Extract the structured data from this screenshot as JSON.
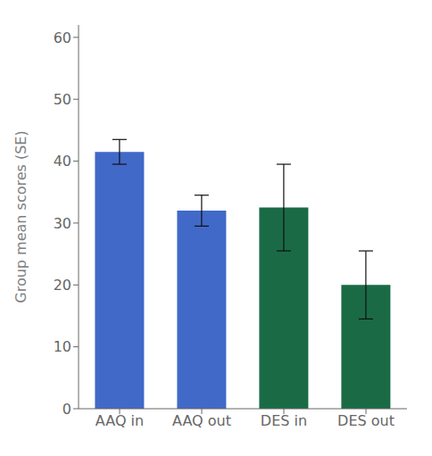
{
  "chart_data": {
    "type": "bar",
    "categories": [
      "AAQ in",
      "AAQ out",
      "DES in",
      "DES out"
    ],
    "values": [
      41.5,
      32.0,
      32.5,
      20.0
    ],
    "errors": [
      2.0,
      2.5,
      7.0,
      5.5
    ],
    "colors": [
      "#4169c8",
      "#4169c8",
      "#1a6b45",
      "#1a6b45"
    ],
    "ylabel": "Group mean scores (SE)",
    "ylim": [
      0,
      62
    ],
    "yticks": [
      0,
      10,
      20,
      30,
      40,
      50,
      60
    ],
    "grid": false
  }
}
